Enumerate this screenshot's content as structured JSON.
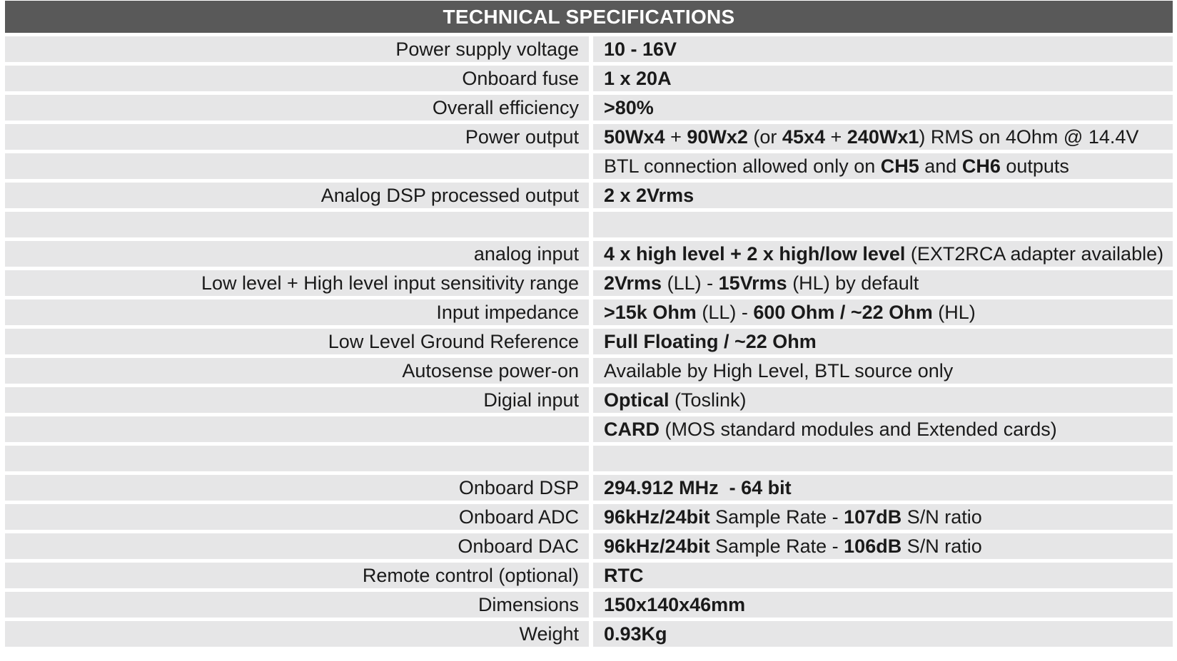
{
  "title": "TECHNICAL SPECIFICATIONS",
  "rows": [
    {
      "label": "Power supply voltage",
      "value": [
        {
          "t": "10 - 16V",
          "b": true
        }
      ]
    },
    {
      "label": "Onboard fuse",
      "value": [
        {
          "t": "1 x 20A",
          "b": true
        }
      ]
    },
    {
      "label": "Overall efficiency",
      "value": [
        {
          "t": ">80%",
          "b": true
        }
      ]
    },
    {
      "label": "Power output",
      "value": [
        {
          "t": "50Wx4",
          "b": true
        },
        {
          "t": " + ",
          "b": false
        },
        {
          "t": "90Wx2",
          "b": true
        },
        {
          "t": " (or ",
          "b": false
        },
        {
          "t": "45x4",
          "b": true
        },
        {
          "t": " + ",
          "b": false
        },
        {
          "t": "240Wx1",
          "b": true
        },
        {
          "t": ") RMS on 4Ohm @ 14.4V",
          "b": false
        }
      ]
    },
    {
      "label": "",
      "value": [
        {
          "t": "BTL connection allowed only on ",
          "b": false
        },
        {
          "t": "CH5",
          "b": true
        },
        {
          "t": " and ",
          "b": false
        },
        {
          "t": "CH6",
          "b": true
        },
        {
          "t": " outputs",
          "b": false
        }
      ]
    },
    {
      "label": "Analog DSP processed output",
      "value": [
        {
          "t": "2 x 2Vrms",
          "b": true
        }
      ]
    },
    {
      "label": "",
      "value": []
    },
    {
      "label": "analog input",
      "value": [
        {
          "t": "4 x high level + 2 x high/low level",
          "b": true
        },
        {
          "t": " (EXT2RCA adapter available)",
          "b": false
        }
      ]
    },
    {
      "label": "Low level + High level input sensitivity range",
      "value": [
        {
          "t": "2Vrms",
          "b": true
        },
        {
          "t": " (LL) - ",
          "b": false
        },
        {
          "t": "15Vrms",
          "b": true
        },
        {
          "t": " (HL) by default",
          "b": false
        }
      ]
    },
    {
      "label": "Input impedance",
      "value": [
        {
          "t": ">15k Ohm",
          "b": true
        },
        {
          "t": " (LL) - ",
          "b": false
        },
        {
          "t": "600 Ohm / ~22 Ohm",
          "b": true
        },
        {
          "t": " (HL)",
          "b": false
        }
      ]
    },
    {
      "label": "Low Level Ground Reference",
      "value": [
        {
          "t": "Full Floating / ~22 Ohm",
          "b": true
        }
      ]
    },
    {
      "label": "Autosense power-on",
      "value": [
        {
          "t": "Available by High Level, BTL source only",
          "b": false
        }
      ]
    },
    {
      "label": "Digial input",
      "value": [
        {
          "t": "Optical",
          "b": true
        },
        {
          "t": " (Toslink)",
          "b": false
        }
      ]
    },
    {
      "label": "",
      "value": [
        {
          "t": "CARD",
          "b": true
        },
        {
          "t": " (MOS standard modules and Extended cards)",
          "b": false
        }
      ]
    },
    {
      "label": "",
      "value": []
    },
    {
      "label": "Onboard DSP",
      "value": [
        {
          "t": "294.912 MHz  - 64 bit",
          "b": true
        }
      ]
    },
    {
      "label": "Onboard ADC",
      "value": [
        {
          "t": "96kHz/24bit",
          "b": true
        },
        {
          "t": " Sample Rate - ",
          "b": false
        },
        {
          "t": "107dB",
          "b": true
        },
        {
          "t": " S/N ratio",
          "b": false
        }
      ]
    },
    {
      "label": "Onboard DAC",
      "value": [
        {
          "t": "96kHz/24bit",
          "b": true
        },
        {
          "t": " Sample Rate - ",
          "b": false
        },
        {
          "t": "106dB",
          "b": true
        },
        {
          "t": " S/N ratio",
          "b": false
        }
      ]
    },
    {
      "label": "Remote control (optional)",
      "value": [
        {
          "t": "RTC",
          "b": true
        }
      ]
    },
    {
      "label": "Dimensions",
      "value": [
        {
          "t": "150x140x46mm",
          "b": true
        }
      ]
    },
    {
      "label": "Weight",
      "value": [
        {
          "t": "0.93Kg",
          "b": true
        }
      ]
    }
  ]
}
